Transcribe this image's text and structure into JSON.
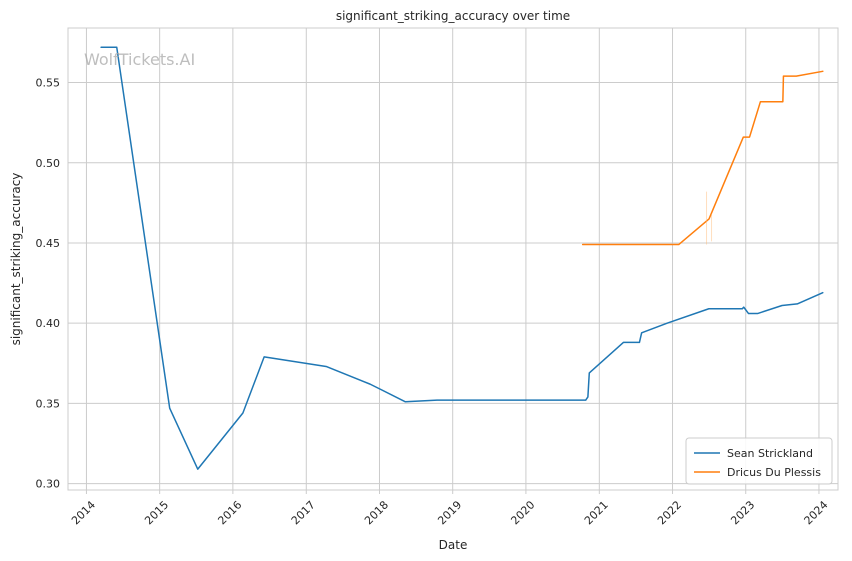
{
  "chart_data": {
    "type": "line",
    "title": "significant_striking_accuracy over time",
    "xlabel": "Date",
    "ylabel": "significant_striking_accuracy",
    "watermark": "WolfTickets.AI",
    "xlim": [
      "2013-10-01",
      "2024-04-05"
    ],
    "ylim": [
      0.296,
      0.584
    ],
    "grid": true,
    "legend_position": "bottom-right",
    "x_ticks": [
      "2014",
      "2015",
      "2016",
      "2017",
      "2018",
      "2019",
      "2020",
      "2021",
      "2022",
      "2023",
      "2024"
    ],
    "y_ticks": [
      "0.30",
      "0.35",
      "0.40",
      "0.45",
      "0.50",
      "0.55"
    ],
    "series": [
      {
        "name": "Sean Strickland",
        "color": "#1f77b4",
        "points": [
          [
            "2014-03-15",
            0.572
          ],
          [
            "2014-06-01",
            0.572
          ],
          [
            "2015-02-20",
            0.347
          ],
          [
            "2015-07-10",
            0.309
          ],
          [
            "2016-02-20",
            0.344
          ],
          [
            "2016-06-05",
            0.379
          ],
          [
            "2017-04-10",
            0.373
          ],
          [
            "2017-11-15",
            0.362
          ],
          [
            "2018-05-10",
            0.351
          ],
          [
            "2018-10-15",
            0.352
          ],
          [
            "2020-10-12",
            0.352
          ],
          [
            "2020-10-25",
            0.352
          ],
          [
            "2020-11-05",
            0.354
          ],
          [
            "2020-11-12",
            0.369
          ],
          [
            "2021-05-01",
            0.388
          ],
          [
            "2021-07-20",
            0.388
          ],
          [
            "2021-07-31",
            0.394
          ],
          [
            "2021-12-05",
            0.4
          ],
          [
            "2022-07-01",
            0.409
          ],
          [
            "2022-12-15",
            0.409
          ],
          [
            "2022-12-22",
            0.41
          ],
          [
            "2023-01-15",
            0.406
          ],
          [
            "2023-03-01",
            0.406
          ],
          [
            "2023-07-01",
            0.411
          ],
          [
            "2023-09-15",
            0.412
          ],
          [
            "2024-01-20",
            0.419
          ]
        ]
      },
      {
        "name": "Dricus Du Plessis",
        "color": "#ff7f0e",
        "points": [
          [
            "2020-10-10",
            0.449
          ],
          [
            "2022-02-01",
            0.449
          ],
          [
            "2022-07-02",
            0.465
          ],
          [
            "2022-12-20",
            0.516
          ],
          [
            "2023-01-20",
            0.516
          ],
          [
            "2023-03-15",
            0.538
          ],
          [
            "2023-07-05",
            0.538
          ],
          [
            "2023-07-08",
            0.554
          ],
          [
            "2023-09-10",
            0.554
          ],
          [
            "2024-01-20",
            0.557
          ]
        ]
      }
    ]
  }
}
